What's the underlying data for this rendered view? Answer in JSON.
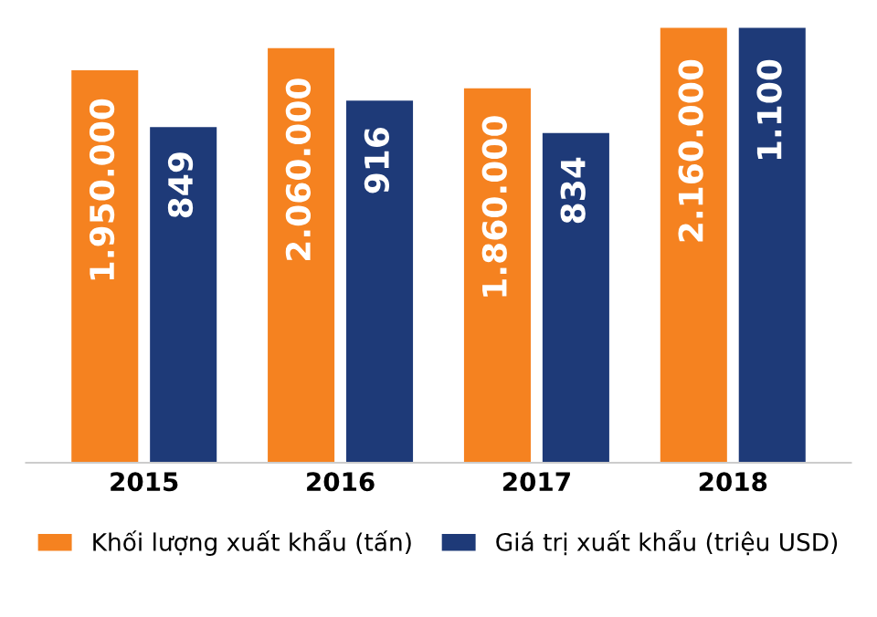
{
  "chart_data": {
    "type": "bar",
    "categories": [
      "2015",
      "2016",
      "2017",
      "2018"
    ],
    "series": [
      {
        "name": "Khối lượng xuất khẩu (tấn)",
        "color": "#f58220",
        "values": [
          1950000,
          2060000,
          1860000,
          2160000
        ],
        "value_labels": [
          "1.950.000",
          "2.060.000",
          "1.860.000",
          "2.160.000"
        ]
      },
      {
        "name": "Giá trị xuất khẩu (triệu USD)",
        "color": "#1e3a78",
        "axis": "y2",
        "values": [
          849,
          916,
          834,
          1100
        ],
        "value_labels": [
          "849",
          "916",
          "834",
          "1.100"
        ]
      }
    ],
    "tick_labels": "x",
    "legend": "bottom",
    "grid": false
  }
}
